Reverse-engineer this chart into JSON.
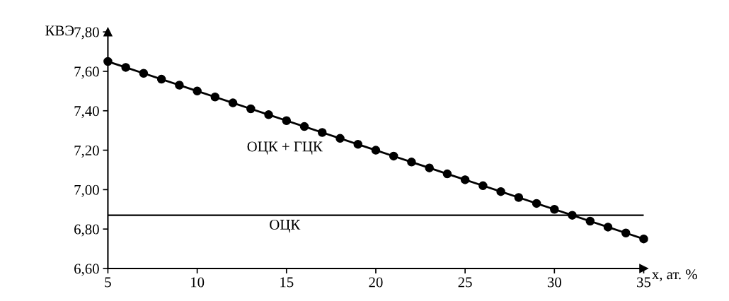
{
  "chart_data": {
    "type": "line",
    "xlabel": "x, ат. %",
    "ylabel": "КВЭ",
    "x": [
      5,
      6,
      7,
      8,
      9,
      10,
      11,
      12,
      13,
      14,
      15,
      16,
      17,
      18,
      19,
      20,
      21,
      22,
      23,
      24,
      25,
      26,
      27,
      28,
      29,
      30,
      31,
      32,
      33,
      34,
      35
    ],
    "series": [
      {
        "color": "#000000",
        "values": [
          7.65,
          7.62,
          7.59,
          7.56,
          7.53,
          7.5,
          7.47,
          7.44,
          7.41,
          7.38,
          7.35,
          7.32,
          7.29,
          7.26,
          7.23,
          7.2,
          7.17,
          7.14,
          7.11,
          7.08,
          7.05,
          7.02,
          6.99,
          6.96,
          6.93,
          6.9,
          6.87,
          6.84,
          6.81,
          6.78,
          6.75
        ]
      }
    ],
    "marker": "circle",
    "line_style": "solid",
    "grid": false,
    "legend": false,
    "xlim": [
      5,
      35
    ],
    "xticks": [
      5,
      10,
      15,
      20,
      25,
      30,
      35
    ],
    "ylim": [
      6.6,
      7.8
    ],
    "yticks": [
      {
        "value": 6.6,
        "label": "6,60"
      },
      {
        "value": 6.8,
        "label": "6,80"
      },
      {
        "value": 7.0,
        "label": "7,00"
      },
      {
        "value": 7.2,
        "label": "7,20"
      },
      {
        "value": 7.4,
        "label": "7,40"
      },
      {
        "value": 7.6,
        "label": "7,60"
      },
      {
        "value": 7.8,
        "label": "7,80"
      }
    ],
    "ref_lines": [
      {
        "axis": "y",
        "value": 6.87,
        "color": "#000000"
      }
    ],
    "annotations": [
      "ОЦК + ГЦК",
      "ОЦК"
    ]
  }
}
